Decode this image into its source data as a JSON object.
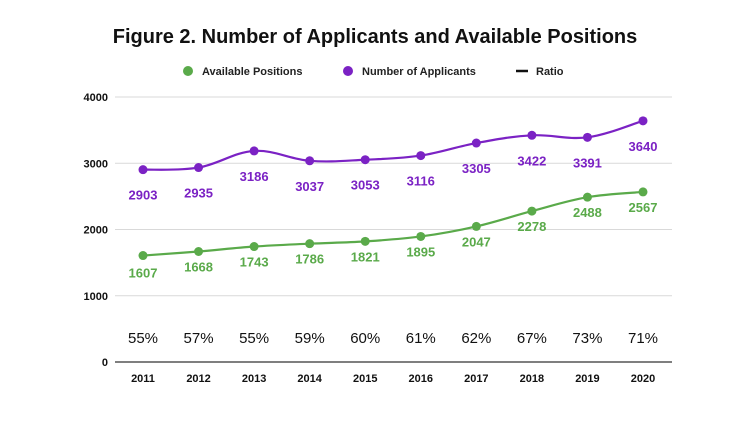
{
  "chart_data": {
    "type": "line",
    "title": "Figure 2. Number of Applicants and Available Positions",
    "categories": [
      "2011",
      "2012",
      "2013",
      "2014",
      "2015",
      "2016",
      "2017",
      "2018",
      "2019",
      "2020"
    ],
    "ylim": [
      0,
      4000
    ],
    "yticks": [
      0,
      1000,
      2000,
      3000,
      4000
    ],
    "grid": true,
    "legend_position": "top",
    "series": [
      {
        "name": "Available Positions",
        "color": "#5aaa4a",
        "values": [
          1607,
          1668,
          1743,
          1786,
          1821,
          1895,
          2047,
          2278,
          2488,
          2567
        ],
        "labels": [
          "1607",
          "1668",
          "1743",
          "1786",
          "1821",
          "1895",
          "2047",
          "2278",
          "2488",
          "2567"
        ]
      },
      {
        "name": "Number of Applicants",
        "color": "#7b22c4",
        "values": [
          2903,
          2935,
          3186,
          3037,
          3053,
          3116,
          3305,
          3422,
          3391,
          3640
        ],
        "labels": [
          "2903",
          "2935",
          "3186",
          "3037",
          "3053",
          "3116",
          "3305",
          "3422",
          "3391",
          "3640"
        ]
      }
    ],
    "ratio": {
      "name": "Ratio",
      "color": "#111111",
      "labels": [
        "55%",
        "57%",
        "55%",
        "59%",
        "60%",
        "61%",
        "62%",
        "67%",
        "73%",
        "71%"
      ]
    }
  }
}
